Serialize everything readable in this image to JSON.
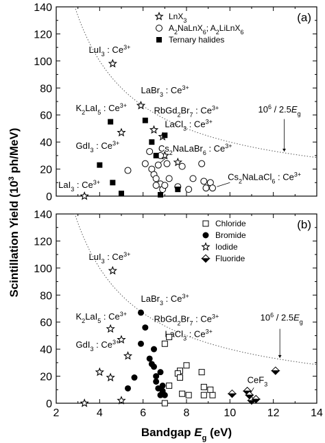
{
  "figure": {
    "ylabel_main": "Scintillation Yield (10",
    "ylabel_exp": "3",
    "ylabel_tail": " ph/MeV)",
    "xlabel_main": "Bandgap ",
    "xlabel_var": "E",
    "xlabel_sub": "g",
    "xlabel_tail": " (eV)"
  },
  "chart_data": [
    {
      "type": "scatter",
      "panel_label": "(a)",
      "xlim": [
        2,
        14
      ],
      "ylim": [
        0,
        140
      ],
      "xticks": [
        2,
        4,
        6,
        8,
        10,
        12,
        14
      ],
      "yticks": [
        0,
        20,
        40,
        60,
        80,
        100,
        120,
        140
      ],
      "legend_position": "top-right",
      "curve": {
        "label_pre": "10",
        "label_exp": "6",
        "label_mid": " / 2.5",
        "label_var": "E",
        "label_sub": "g",
        "style": "dotted"
      },
      "series": [
        {
          "name": "LnX",
          "name_sub": "3",
          "marker": "star",
          "points": [
            [
              4.6,
              98
            ],
            [
              5.9,
              67
            ],
            [
              6.5,
              49
            ],
            [
              6.9,
              44
            ],
            [
              5.0,
              47
            ],
            [
              3.3,
              0
            ],
            [
              7.0,
              30
            ],
            [
              7.6,
              25
            ]
          ]
        },
        {
          "name": "A",
          "name_rich": [
            [
              "A",
              ""
            ],
            [
              "2",
              "sub"
            ],
            [
              "NaLnX",
              ""
            ],
            [
              "6",
              "sub"
            ],
            [
              "; A",
              ""
            ],
            [
              "2",
              "sub"
            ],
            [
              "LiLnX",
              ""
            ],
            [
              "6",
              "sub"
            ]
          ],
          "marker": "open-circle",
          "points": [
            [
              5.3,
              19
            ],
            [
              6.1,
              24
            ],
            [
              6.3,
              33
            ],
            [
              6.4,
              20
            ],
            [
              6.5,
              16
            ],
            [
              6.6,
              13
            ],
            [
              6.7,
              23
            ],
            [
              6.8,
              30
            ],
            [
              6.8,
              9
            ],
            [
              6.9,
              5
            ],
            [
              7.0,
              8
            ],
            [
              7.1,
              24
            ],
            [
              7.2,
              13
            ],
            [
              7.6,
              7
            ],
            [
              7.8,
              22
            ],
            [
              8.1,
              5
            ],
            [
              8.3,
              13
            ],
            [
              8.7,
              24
            ],
            [
              8.8,
              11
            ],
            [
              8.9,
              6
            ],
            [
              9.1,
              10
            ],
            [
              9.2,
              6
            ],
            [
              6.6,
              8
            ]
          ]
        },
        {
          "name": "Ternary halides",
          "marker": "filled-square",
          "points": [
            [
              4.5,
              55
            ],
            [
              4.0,
              23
            ],
            [
              4.6,
              10
            ],
            [
              5.0,
              2
            ],
            [
              6.1,
              56
            ],
            [
              6.4,
              40
            ],
            [
              6.6,
              30
            ],
            [
              7.0,
              45
            ],
            [
              7.6,
              5
            ],
            [
              6.8,
              1
            ]
          ]
        }
      ],
      "annotations": [
        {
          "parts": [
            [
              "LuI",
              ""
            ],
            [
              "3",
              "sub"
            ],
            [
              " : Ce",
              ""
            ],
            [
              "3+",
              "sup"
            ]
          ],
          "x": 3.5,
          "y": 106
        },
        {
          "parts": [
            [
              "LaBr",
              ""
            ],
            [
              "3",
              "sub"
            ],
            [
              " : Ce",
              ""
            ],
            [
              "3+",
              "sup"
            ]
          ],
          "x": 5.9,
          "y": 76
        },
        {
          "parts": [
            [
              "K",
              ""
            ],
            [
              "2",
              "sub"
            ],
            [
              "LaI",
              ""
            ],
            [
              "5",
              "sub"
            ],
            [
              " : Ce",
              ""
            ],
            [
              "3+",
              "sup"
            ]
          ],
          "x": 2.9,
          "y": 63
        },
        {
          "parts": [
            [
              "RbGd",
              ""
            ],
            [
              "2",
              "sub"
            ],
            [
              "Br",
              ""
            ],
            [
              "7",
              "sub"
            ],
            [
              " : Ce",
              ""
            ],
            [
              "3+",
              "sup"
            ]
          ],
          "x": 6.5,
          "y": 61
        },
        {
          "parts": [
            [
              "LaCl",
              ""
            ],
            [
              "3",
              "sub"
            ],
            [
              " : Ce",
              ""
            ],
            [
              "3+",
              "sup"
            ]
          ],
          "x": 7.0,
          "y": 51
        },
        {
          "parts": [
            [
              "GdI",
              ""
            ],
            [
              "3",
              "sub"
            ],
            [
              " : Ce",
              ""
            ],
            [
              "3+",
              "sup"
            ]
          ],
          "x": 2.9,
          "y": 35
        },
        {
          "parts": [
            [
              "Cs",
              ""
            ],
            [
              "2",
              "sub"
            ],
            [
              "NaLaBr",
              ""
            ],
            [
              "6",
              "sub"
            ],
            [
              " : Ce",
              ""
            ],
            [
              "3+",
              "sup"
            ]
          ],
          "x": 6.7,
          "y": 33
        },
        {
          "parts": [
            [
              "LaI",
              ""
            ],
            [
              "3",
              "sub"
            ],
            [
              " : Ce",
              ""
            ],
            [
              "3+",
              "sup"
            ]
          ],
          "x": 2.1,
          "y": 6
        },
        {
          "parts": [
            [
              "Cs",
              ""
            ],
            [
              "2",
              "sub"
            ],
            [
              "NaLaCl",
              ""
            ],
            [
              "6",
              "sub"
            ],
            [
              " : Ce",
              ""
            ],
            [
              "3+",
              "sup"
            ]
          ],
          "x": 9.9,
          "y": 12
        }
      ]
    },
    {
      "type": "scatter",
      "panel_label": "(b)",
      "xlim": [
        2,
        14
      ],
      "ylim": [
        0,
        140
      ],
      "xticks": [
        2,
        4,
        6,
        8,
        10,
        12,
        14
      ],
      "yticks": [
        0,
        20,
        40,
        60,
        80,
        100,
        120,
        140
      ],
      "legend_position": "top-right",
      "curve": {
        "label_pre": "10",
        "label_exp": "6",
        "label_mid": " / 2.5",
        "label_var": "E",
        "label_sub": "g",
        "style": "dotted"
      },
      "series": [
        {
          "name": "Chloride",
          "marker": "open-square",
          "points": [
            [
              7.2,
              49
            ],
            [
              7.0,
              44
            ],
            [
              7.7,
              24
            ],
            [
              8.0,
              28
            ],
            [
              7.6,
              22
            ],
            [
              7.7,
              19
            ],
            [
              8.7,
              23
            ],
            [
              8.8,
              12
            ],
            [
              7.8,
              7
            ],
            [
              8.1,
              6
            ],
            [
              8.8,
              6
            ],
            [
              9.2,
              6
            ],
            [
              9.1,
              10
            ],
            [
              7.2,
              13
            ],
            [
              7.0,
              0
            ]
          ]
        },
        {
          "name": "Bromide",
          "marker": "filled-circle",
          "points": [
            [
              5.9,
              67
            ],
            [
              5.9,
              44
            ],
            [
              6.1,
              56
            ],
            [
              6.5,
              40
            ],
            [
              6.3,
              33
            ],
            [
              6.4,
              29
            ],
            [
              6.5,
              27
            ],
            [
              6.6,
              20
            ],
            [
              6.6,
              16
            ],
            [
              6.8,
              23
            ],
            [
              6.9,
              13
            ],
            [
              6.7,
              11
            ],
            [
              6.9,
              9
            ],
            [
              6.8,
              6
            ],
            [
              7.0,
              6
            ],
            [
              5.6,
              19
            ],
            [
              5.3,
              11
            ]
          ]
        },
        {
          "name": "Iodide",
          "marker": "star",
          "points": [
            [
              4.6,
              98
            ],
            [
              4.5,
              55
            ],
            [
              5.0,
              47
            ],
            [
              4.0,
              23
            ],
            [
              4.5,
              19
            ],
            [
              5.0,
              2
            ],
            [
              3.3,
              0
            ],
            [
              5.3,
              35
            ]
          ]
        },
        {
          "name": "Fluoride",
          "marker": "half-diamond",
          "points": [
            [
              10.1,
              7
            ],
            [
              10.8,
              9
            ],
            [
              10.9,
              6
            ],
            [
              11.0,
              2
            ],
            [
              11.2,
              3
            ],
            [
              12.1,
              24
            ]
          ]
        }
      ],
      "annotations": [
        {
          "parts": [
            [
              "LuI",
              ""
            ],
            [
              "3",
              "sub"
            ],
            [
              " : Ce",
              ""
            ],
            [
              "3+",
              "sup"
            ]
          ],
          "x": 3.5,
          "y": 106
        },
        {
          "parts": [
            [
              "LaBr",
              ""
            ],
            [
              "3",
              "sub"
            ],
            [
              " : Ce",
              ""
            ],
            [
              "3+",
              "sup"
            ]
          ],
          "x": 5.9,
          "y": 75
        },
        {
          "parts": [
            [
              "K",
              ""
            ],
            [
              "2",
              "sub"
            ],
            [
              "LaI",
              ""
            ],
            [
              "5",
              "sub"
            ],
            [
              " : Ce",
              ""
            ],
            [
              "3+",
              "sup"
            ]
          ],
          "x": 2.9,
          "y": 62
        },
        {
          "parts": [
            [
              "RbGd",
              ""
            ],
            [
              "2",
              "sub"
            ],
            [
              "Br",
              ""
            ],
            [
              "7",
              "sub"
            ],
            [
              " : Ce",
              ""
            ],
            [
              "3+",
              "sup"
            ]
          ],
          "x": 6.5,
          "y": 60
        },
        {
          "parts": [
            [
              "LaCl",
              ""
            ],
            [
              "3",
              "sub"
            ],
            [
              " : Ce",
              ""
            ],
            [
              "3+",
              "sup"
            ]
          ],
          "x": 7.0,
          "y": 49
        },
        {
          "parts": [
            [
              "GdI",
              ""
            ],
            [
              "3",
              "sub"
            ],
            [
              " : Ce",
              ""
            ],
            [
              "3+",
              "sup"
            ]
          ],
          "x": 2.9,
          "y": 41
        },
        {
          "parts": [
            [
              "CeF",
              ""
            ],
            [
              "3",
              "sub"
            ]
          ],
          "x": 10.8,
          "y": 15
        }
      ]
    }
  ]
}
